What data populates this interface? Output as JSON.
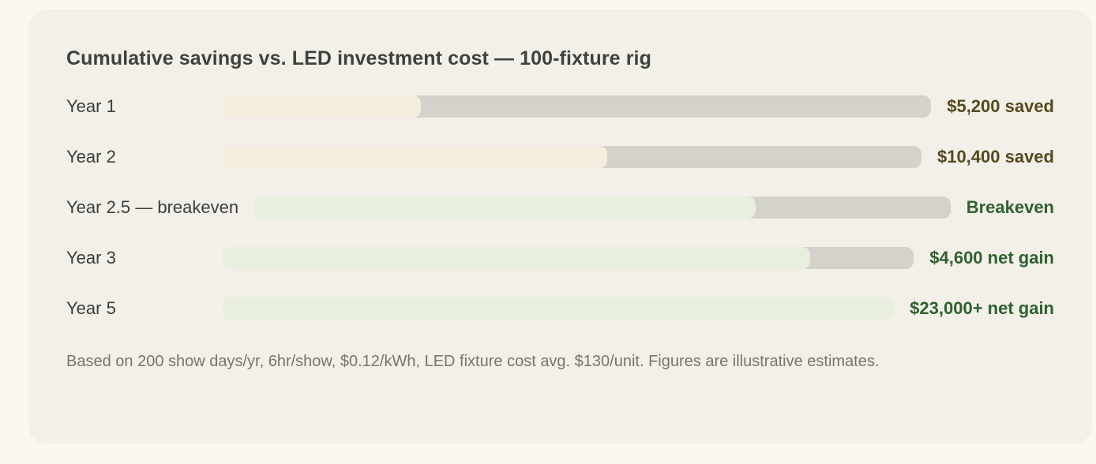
{
  "palette": {
    "page_bg": "#faf8f1",
    "card_bg": "#f2f0e9",
    "track_gray": "#d4d2cb",
    "cream": "#f5edde",
    "green": "#e9efde",
    "olive": "#57491d",
    "green_text": "#2f612e",
    "title_text": "#3e423c",
    "label_text": "#3a3e39",
    "footnote_text": "#75766f"
  },
  "chart_data": {
    "type": "bar",
    "orientation": "horizontal",
    "title": "Cumulative savings vs. LED investment cost — 100-fixture rig",
    "note": "Based on 200 show days/yr, 6hr/show, $0.12/kWh, LED fixture cost avg. $130/unit. Figures are illustrative estimates.",
    "unit": "USD",
    "legend": "off",
    "axes": "none — progress bars with right-aligned value labels",
    "rows": [
      {
        "label": "Year 1",
        "value_label": "$5,200 saved",
        "value_usd": 5200,
        "fill_percent": 28,
        "fill_color": "cream",
        "value_color": "olive"
      },
      {
        "label": "Year 2",
        "value_label": "$10,400 saved",
        "value_usd": 10400,
        "fill_percent": 55,
        "fill_color": "cream",
        "value_color": "olive"
      },
      {
        "label": "Year 2.5 — breakeven",
        "value_label": "Breakeven",
        "value_usd": null,
        "fill_percent": 72,
        "fill_color": "green",
        "value_color": "green_text"
      },
      {
        "label": "Year 3",
        "value_label": "$4,600 net gain",
        "value_usd": 4600,
        "fill_percent": 85,
        "fill_color": "green",
        "value_color": "green_text"
      },
      {
        "label": "Year 5",
        "value_label": "$23,000+ net gain",
        "value_usd": 23000,
        "fill_percent": 100,
        "fill_color": "green",
        "value_color": "green_text"
      }
    ]
  }
}
